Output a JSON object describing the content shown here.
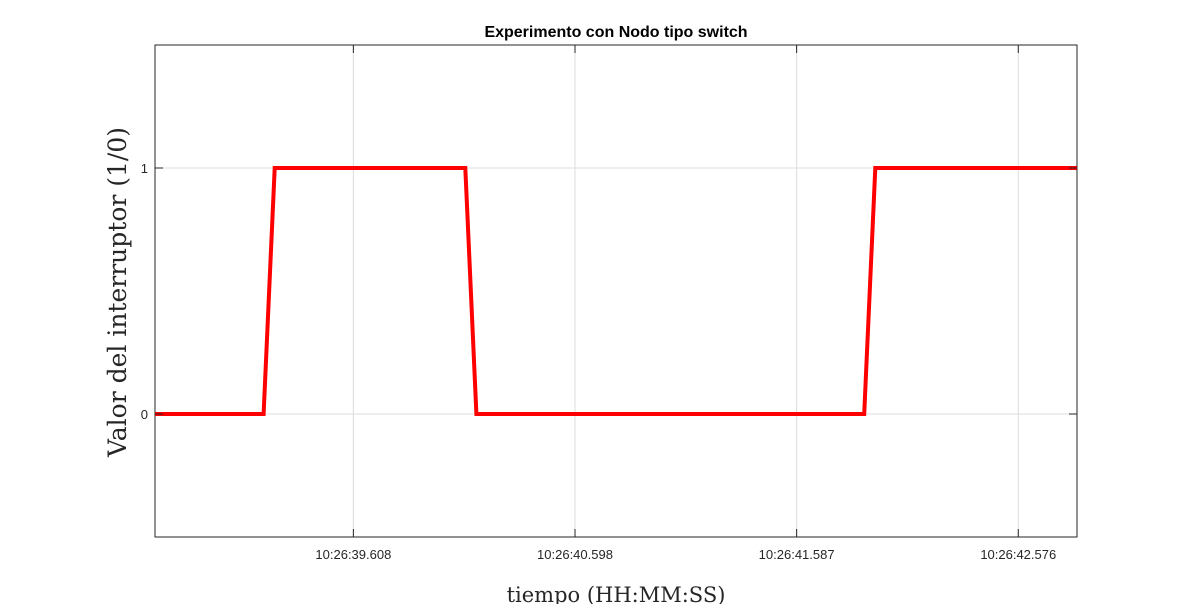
{
  "chart_data": {
    "type": "line",
    "title": "Experimento con Nodo tipo switch",
    "xlabel": "tiempo (HH:MM:SS)",
    "ylabel": "Valor del interruptor (1/0)",
    "xlim": [
      0,
      4.16
    ],
    "ylim": [
      -0.5,
      1.5
    ],
    "x_ticks": [
      {
        "value": 0.895,
        "label": "10:26:39.608"
      },
      {
        "value": 1.895,
        "label": "10:26:40.598"
      },
      {
        "value": 2.895,
        "label": "10:26:41.587"
      },
      {
        "value": 3.895,
        "label": "10:26:42.576"
      }
    ],
    "y_ticks": [
      {
        "value": 0,
        "label": "0"
      },
      {
        "value": 1,
        "label": "1"
      }
    ],
    "grid": true,
    "series": [
      {
        "color": "#ff0000",
        "x": [
          0,
          0.49,
          0.54,
          1.4,
          1.45,
          3.2,
          3.25,
          4.16
        ],
        "values": [
          0,
          0,
          1,
          1,
          0,
          0,
          1,
          1
        ]
      }
    ]
  }
}
